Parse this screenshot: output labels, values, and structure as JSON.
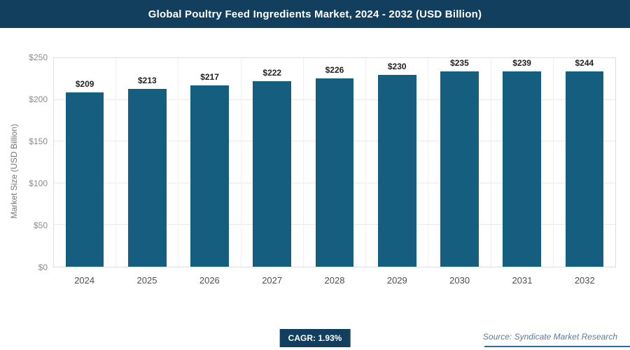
{
  "header": {
    "title": "Global Poultry Feed Ingredients Market, 2024 - 2032 (USD Billion)"
  },
  "chart_data": {
    "type": "bar",
    "title": "Global Poultry Feed Ingredients Market, 2024 - 2032 (USD Billion)",
    "categories": [
      "2024",
      "2025",
      "2026",
      "2027",
      "2028",
      "2029",
      "2030",
      "2031",
      "2032"
    ],
    "values": [
      209,
      213,
      217,
      222,
      226,
      230,
      235,
      239,
      244
    ],
    "value_labels": [
      "$209",
      "$213",
      "$217",
      "$222",
      "$226",
      "$230",
      "$235",
      "$239",
      "$244"
    ],
    "xlabel": "",
    "ylabel": "Market Size (USD Billion)",
    "ylim": [
      0,
      250
    ],
    "yticks": [
      "$0",
      "$50",
      "$100",
      "$150",
      "$200",
      "$250"
    ],
    "grid": true,
    "legend": "none"
  },
  "footer": {
    "cagr_label": "CAGR: 1.93%",
    "source": "Source: Syndicate Market Research"
  },
  "colors": {
    "header_bg": "#123f5e",
    "bar": "#155e7f",
    "badge_bg": "#123f5e",
    "source_text": "#5c7a99",
    "footer_line": "#2e6da4"
  }
}
